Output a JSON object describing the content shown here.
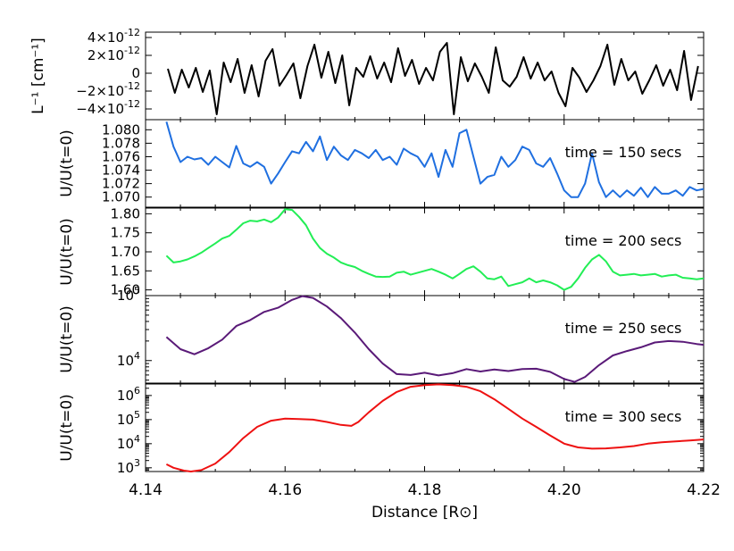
{
  "chart_data": {
    "type": "line",
    "xlabel": "Distance [R⊙]",
    "xlim": [
      4.14,
      4.22
    ],
    "x_ticks": [
      "4.14",
      "4.16",
      "4.18",
      "4.20",
      "4.22"
    ],
    "panels": [
      {
        "id": "inverse-length",
        "ylabel": "L⁻¹ [cm⁻¹]",
        "scale": "linear",
        "ylim": [
          -5.2e-12,
          4.6e-12
        ],
        "y_ticks": [
          {
            "value": 4e-12,
            "mantissa": "4",
            "exp": "-12"
          },
          {
            "value": 2e-12,
            "mantissa": "2",
            "exp": "-12"
          },
          {
            "value": 0,
            "mantissa": "0",
            "exp": ""
          },
          {
            "value": -2e-12,
            "mantissa": "−2",
            "exp": "-12"
          },
          {
            "value": -4e-12,
            "mantissa": "−4",
            "exp": "-12"
          }
        ],
        "series": [
          {
            "color": "#000000",
            "x": [
              4.1432,
              4.1442,
              4.1452,
              4.1462,
              4.1472,
              4.1482,
              4.1492,
              4.1502,
              4.1512,
              4.1522,
              4.1532,
              4.1542,
              4.1552,
              4.1562,
              4.1572,
              4.1582,
              4.1592,
              4.1602,
              4.1612,
              4.1622,
              4.1632,
              4.1642,
              4.1652,
              4.1662,
              4.1672,
              4.1682,
              4.1692,
              4.1702,
              4.1712,
              4.1722,
              4.1732,
              4.1742,
              4.1752,
              4.1762,
              4.1772,
              4.1782,
              4.1792,
              4.1802,
              4.1812,
              4.1822,
              4.1832,
              4.1842,
              4.1852,
              4.1862,
              4.1872,
              4.1882,
              4.1892,
              4.1902,
              4.1912,
              4.1922,
              4.1932,
              4.1942,
              4.1952,
              4.1962,
              4.1972,
              4.1982,
              4.1992,
              4.2002,
              4.2012,
              4.2022,
              4.2032,
              4.2042,
              4.2052,
              4.2062,
              4.2072,
              4.2082,
              4.2092,
              4.2102,
              4.2112,
              4.2122,
              4.2132,
              4.2142,
              4.2152,
              4.2162,
              4.2172,
              4.2182,
              4.2192
            ],
            "y": [
              5e-13,
              -2.2e-12,
              4e-13,
              -1.6e-12,
              6e-13,
              -2.1e-12,
              3e-13,
              -4.6e-12,
              1.2e-12,
              -1e-12,
              1.6e-12,
              -2.2e-12,
              9e-13,
              -2.6e-12,
              1.4e-12,
              2.7e-12,
              -1.4e-12,
              -2e-13,
              1.1e-12,
              -2.8e-12,
              8e-13,
              3.2e-12,
              -5e-13,
              2.4e-12,
              -1.1e-12,
              2e-12,
              -3.6e-12,
              6e-13,
              -4e-13,
              1.9e-12,
              -6e-13,
              1.2e-12,
              -1e-12,
              2.8e-12,
              -3e-13,
              1.5e-12,
              -1.2e-12,
              6e-13,
              -8e-13,
              2.4e-12,
              3.4e-12,
              -4.6e-12,
              1.8e-12,
              -9e-13,
              1.1e-12,
              -4e-13,
              -2.2e-12,
              2.9e-12,
              -8e-13,
              -1.5e-12,
              -4e-13,
              1.8e-12,
              -6e-13,
              1.2e-12,
              -8e-13,
              2e-13,
              -2.2e-12,
              -3.7e-12,
              6e-13,
              -5e-13,
              -2.1e-12,
              -8e-13,
              8e-13,
              3.2e-12,
              -1.3e-12,
              1.6e-12,
              -8e-13,
              2e-13,
              -2.3e-12,
              -8e-13,
              9e-13,
              -1.4e-12,
              4e-13,
              -1.9e-12,
              2.5e-12,
              -3e-12,
              8e-13
            ]
          }
        ]
      },
      {
        "id": "t150",
        "ylabel": "U/U(t=0)",
        "scale": "linear",
        "ylim": [
          1.0685,
          1.0815
        ],
        "y_ticks": [
          {
            "value": 1.08,
            "label": "1.080"
          },
          {
            "value": 1.078,
            "label": "1.078"
          },
          {
            "value": 1.076,
            "label": "1.076"
          },
          {
            "value": 1.074,
            "label": "1.074"
          },
          {
            "value": 1.072,
            "label": "1.072"
          },
          {
            "value": 1.07,
            "label": "1.070"
          }
        ],
        "annotation": "time = 150 secs",
        "series": [
          {
            "name": "time = 150 secs",
            "color": "#1f6fe0",
            "x": [
              4.143,
              4.144,
              4.145,
              4.146,
              4.147,
              4.148,
              4.149,
              4.15,
              4.151,
              4.152,
              4.153,
              4.154,
              4.155,
              4.156,
              4.157,
              4.158,
              4.159,
              4.16,
              4.161,
              4.162,
              4.163,
              4.164,
              4.165,
              4.166,
              4.167,
              4.168,
              4.169,
              4.17,
              4.171,
              4.172,
              4.173,
              4.174,
              4.175,
              4.176,
              4.177,
              4.178,
              4.179,
              4.18,
              4.181,
              4.182,
              4.183,
              4.184,
              4.185,
              4.186,
              4.187,
              4.188,
              4.189,
              4.19,
              4.191,
              4.192,
              4.193,
              4.194,
              4.195,
              4.196,
              4.197,
              4.198,
              4.199,
              4.2,
              4.201,
              4.202,
              4.203,
              4.204,
              4.205,
              4.206,
              4.207,
              4.208,
              4.209,
              4.21,
              4.211,
              4.212,
              4.213,
              4.214,
              4.215,
              4.216,
              4.217,
              4.218,
              4.219,
              4.22
            ],
            "y": [
              1.0812,
              1.0775,
              1.0752,
              1.076,
              1.0756,
              1.0758,
              1.0748,
              1.076,
              1.0752,
              1.0744,
              1.0776,
              1.075,
              1.0745,
              1.0752,
              1.0745,
              1.072,
              1.0735,
              1.0752,
              1.0768,
              1.0765,
              1.0782,
              1.0768,
              1.079,
              1.0755,
              1.0775,
              1.0762,
              1.0755,
              1.077,
              1.0765,
              1.0758,
              1.077,
              1.0755,
              1.076,
              1.0748,
              1.0772,
              1.0765,
              1.076,
              1.0745,
              1.0765,
              1.073,
              1.077,
              1.0745,
              1.0795,
              1.08,
              1.076,
              1.072,
              1.073,
              1.0733,
              1.076,
              1.0745,
              1.0755,
              1.0775,
              1.077,
              1.075,
              1.0745,
              1.0758,
              1.0735,
              1.071,
              1.07,
              1.07,
              1.072,
              1.0765,
              1.0722,
              1.07,
              1.071,
              1.07,
              1.071,
              1.0702,
              1.0714,
              1.07,
              1.0715,
              1.0705,
              1.0705,
              1.071,
              1.0702,
              1.0715,
              1.071,
              1.0712
            ]
          }
        ]
      },
      {
        "id": "t200",
        "ylabel": "U/U(t=0)",
        "scale": "linear",
        "ylim": [
          1.585,
          1.815
        ],
        "y_ticks": [
          {
            "value": 1.8,
            "label": "1.80"
          },
          {
            "value": 1.75,
            "label": "1.75"
          },
          {
            "value": 1.7,
            "label": "1.70"
          },
          {
            "value": 1.65,
            "label": "1.65"
          },
          {
            "value": 1.6,
            "label": "1.60"
          }
        ],
        "annotation": "time = 200 secs",
        "series": [
          {
            "name": "time = 200 secs",
            "color": "#22ee55",
            "x": [
              4.143,
              4.144,
              4.145,
              4.146,
              4.147,
              4.148,
              4.149,
              4.15,
              4.151,
              4.152,
              4.153,
              4.154,
              4.155,
              4.156,
              4.157,
              4.158,
              4.159,
              4.16,
              4.161,
              4.162,
              4.163,
              4.164,
              4.165,
              4.166,
              4.167,
              4.168,
              4.169,
              4.17,
              4.171,
              4.172,
              4.173,
              4.174,
              4.175,
              4.176,
              4.177,
              4.178,
              4.179,
              4.18,
              4.181,
              4.182,
              4.183,
              4.184,
              4.185,
              4.186,
              4.187,
              4.188,
              4.189,
              4.19,
              4.191,
              4.192,
              4.193,
              4.194,
              4.195,
              4.196,
              4.197,
              4.198,
              4.199,
              4.2,
              4.201,
              4.202,
              4.203,
              4.204,
              4.205,
              4.206,
              4.207,
              4.208,
              4.209,
              4.21,
              4.211,
              4.212,
              4.213,
              4.214,
              4.215,
              4.216,
              4.217,
              4.218,
              4.219,
              4.22
            ],
            "y": [
              1.69,
              1.672,
              1.675,
              1.68,
              1.688,
              1.698,
              1.71,
              1.722,
              1.735,
              1.742,
              1.758,
              1.775,
              1.782,
              1.78,
              1.785,
              1.778,
              1.79,
              1.812,
              1.81,
              1.792,
              1.77,
              1.735,
              1.71,
              1.695,
              1.685,
              1.672,
              1.665,
              1.66,
              1.65,
              1.642,
              1.635,
              1.634,
              1.635,
              1.645,
              1.648,
              1.64,
              1.645,
              1.65,
              1.655,
              1.648,
              1.64,
              1.63,
              1.642,
              1.655,
              1.662,
              1.648,
              1.63,
              1.628,
              1.635,
              1.61,
              1.615,
              1.62,
              1.63,
              1.62,
              1.625,
              1.62,
              1.612,
              1.6,
              1.608,
              1.63,
              1.658,
              1.68,
              1.692,
              1.675,
              1.648,
              1.638,
              1.64,
              1.642,
              1.638,
              1.64,
              1.642,
              1.635,
              1.638,
              1.64,
              1.632,
              1.63,
              1.628,
              1.63
            ]
          }
        ]
      },
      {
        "id": "t250",
        "ylabel": "U/U(t=0)",
        "scale": "log",
        "ylim": [
          4500,
          100000
        ],
        "y_ticks": [
          {
            "value": 100000,
            "mantissa": "10",
            "exp": "5"
          },
          {
            "value": 10000,
            "mantissa": "10",
            "exp": "4"
          }
        ],
        "annotation": "time = 250 secs",
        "series": [
          {
            "name": "time = 250 secs",
            "color": "#5a1a78",
            "x": [
              4.143,
              4.145,
              4.147,
              4.149,
              4.151,
              4.153,
              4.155,
              4.157,
              4.159,
              4.161,
              4.1625,
              4.164,
              4.166,
              4.168,
              4.17,
              4.172,
              4.174,
              4.176,
              4.178,
              4.18,
              4.182,
              4.184,
              4.186,
              4.188,
              4.19,
              4.192,
              4.194,
              4.196,
              4.198,
              4.2,
              4.2015,
              4.203,
              4.205,
              4.207,
              4.209,
              4.211,
              4.213,
              4.215,
              4.217,
              4.219,
              4.22
            ],
            "y": [
              23000,
              15000,
              12500,
              15500,
              21000,
              34000,
              42000,
              56000,
              65000,
              86000,
              98000,
              92000,
              68000,
              45000,
              27000,
              15000,
              9000,
              6200,
              6000,
              6500,
              5900,
              6400,
              7400,
              6800,
              7300,
              6900,
              7400,
              7500,
              6700,
              5200,
              4700,
              5600,
              8500,
              12000,
              14000,
              16000,
              19000,
              20000,
              19500,
              18000,
              17500
            ]
          }
        ]
      },
      {
        "id": "t300",
        "ylabel": "U/U(t=0)",
        "scale": "log",
        "ylim": [
          700,
          3000000
        ],
        "y_ticks": [
          {
            "value": 1000000,
            "mantissa": "10",
            "exp": "6"
          },
          {
            "value": 100000,
            "mantissa": "10",
            "exp": "5"
          },
          {
            "value": 10000,
            "mantissa": "10",
            "exp": "4"
          },
          {
            "value": 1000,
            "mantissa": "10",
            "exp": "3"
          }
        ],
        "annotation": "time = 300 secs",
        "series": [
          {
            "name": "time = 300 secs",
            "color": "#ee1111",
            "x": [
              4.143,
              4.144,
              4.1455,
              4.1465,
              4.148,
              4.15,
              4.152,
              4.154,
              4.156,
              4.158,
              4.16,
              4.162,
              4.164,
              4.166,
              4.168,
              4.1695,
              4.1705,
              4.172,
              4.174,
              4.176,
              4.178,
              4.18,
              4.182,
              4.184,
              4.186,
              4.188,
              4.19,
              4.192,
              4.194,
              4.196,
              4.198,
              4.2,
              4.202,
              4.204,
              4.206,
              4.208,
              4.21,
              4.212,
              4.214,
              4.216,
              4.218,
              4.22
            ],
            "y": [
              1400,
              1000,
              760,
              700,
              800,
              1500,
              4500,
              17000,
              50000,
              90000,
              110000,
              105000,
              100000,
              80000,
              60000,
              55000,
              80000,
              200000,
              600000,
              1400000,
              2300000,
              2700000,
              2900000,
              2700000,
              2300000,
              1500000,
              700000,
              280000,
              110000,
              50000,
              22000,
              10000,
              7000,
              6200,
              6400,
              7000,
              8000,
              10000,
              11500,
              12500,
              13500,
              15000
            ]
          }
        ]
      }
    ]
  }
}
